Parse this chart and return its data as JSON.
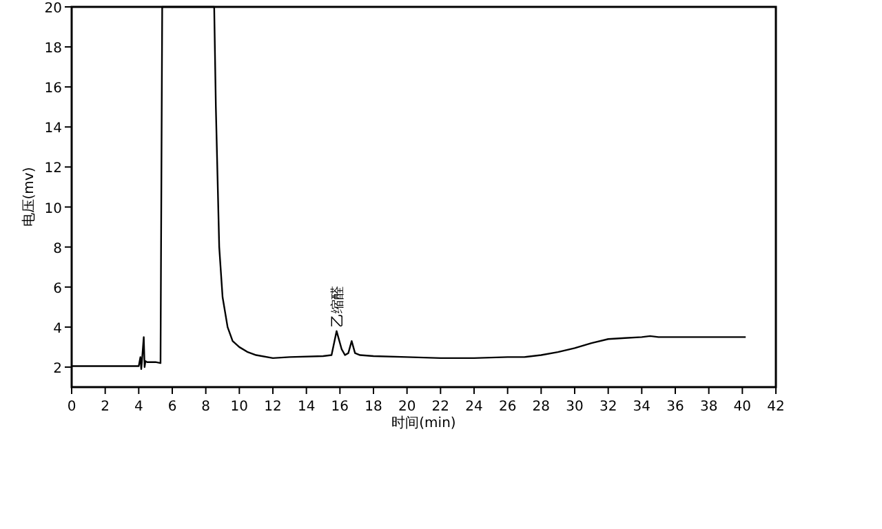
{
  "chart_data": {
    "type": "line",
    "xlabel": "时间(min)",
    "ylabel": "电压(mv)",
    "xlim": [
      0,
      42
    ],
    "ylim": [
      1,
      20
    ],
    "xticks": [
      0,
      2,
      4,
      6,
      8,
      10,
      12,
      14,
      16,
      18,
      20,
      22,
      24,
      26,
      28,
      30,
      32,
      34,
      36,
      38,
      40,
      42
    ],
    "yticks": [
      2,
      4,
      6,
      8,
      10,
      12,
      14,
      16,
      18,
      20
    ],
    "grid": false,
    "annotations": [
      {
        "text": "乙缩醛",
        "x": 15.8,
        "y": 3.8
      }
    ],
    "series": [
      {
        "color": "#000000",
        "x": [
          0,
          4.0,
          4.1,
          4.15,
          4.2,
          4.3,
          4.35,
          4.4,
          4.5,
          5.0,
          5.3,
          5.4,
          8.5,
          8.6,
          8.8,
          9.0,
          9.3,
          9.6,
          10,
          10.5,
          11,
          12,
          13,
          15,
          15.5,
          15.8,
          16.1,
          16.3,
          16.5,
          16.7,
          16.9,
          17.2,
          18,
          20,
          22,
          24,
          26,
          27,
          28,
          29,
          30,
          31,
          32,
          33,
          34,
          34.5,
          35,
          38,
          40.2
        ],
        "values": [
          2.05,
          2.05,
          2.5,
          1.9,
          2.4,
          3.5,
          2.0,
          2.3,
          2.25,
          2.25,
          2.2,
          20,
          20,
          15,
          8,
          5.5,
          4.0,
          3.3,
          3.0,
          2.75,
          2.6,
          2.45,
          2.5,
          2.55,
          2.6,
          3.8,
          2.9,
          2.6,
          2.7,
          3.3,
          2.7,
          2.6,
          2.55,
          2.5,
          2.45,
          2.45,
          2.5,
          2.5,
          2.6,
          2.75,
          2.95,
          3.2,
          3.4,
          3.45,
          3.5,
          3.55,
          3.5,
          3.5,
          3.5
        ]
      }
    ]
  }
}
